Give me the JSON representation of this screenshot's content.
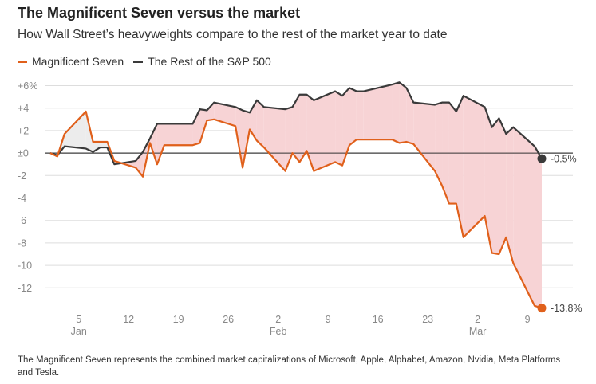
{
  "title": "The Magnificent Seven versus the market",
  "subtitle": "How Wall Street’s heavyweights compare to the rest of the market year to date",
  "footnote": "The Magnificent Seven represents the combined market capitalizations of Microsoft, Apple, Alphabet, Amazon, Nvidia, Meta Platforms and Tesla.",
  "colors": {
    "mag7": "#e0601b",
    "rest": "#3a3a3a",
    "fill_under": "#f7d3d5",
    "fill_over": "#ececec",
    "grid": "#dddddd",
    "zero": "#333333"
  },
  "chart_data": {
    "type": "line",
    "title": "The Magnificent Seven versus the market",
    "xlabel": "",
    "ylabel": "",
    "ylim": [
      -14,
      6
    ],
    "yticks": [
      "+6%",
      "+4",
      "+2",
      "±0",
      "-2",
      "-4",
      "-6",
      "-8",
      "-10",
      "-12"
    ],
    "xticks": [
      "5",
      "12",
      "19",
      "26",
      "2",
      "9",
      "16",
      "23",
      "2",
      "9"
    ],
    "xticks_months": {
      "Jan": "5",
      "Feb": "2",
      "Mar": "2"
    },
    "x_range": [
      "2025-01-01",
      "2025-03-11"
    ],
    "x": [
      "2025-01-01",
      "2025-01-02",
      "2025-01-03",
      "2025-01-06",
      "2025-01-07",
      "2025-01-08",
      "2025-01-09",
      "2025-01-10",
      "2025-01-13",
      "2025-01-14",
      "2025-01-15",
      "2025-01-16",
      "2025-01-17",
      "2025-01-21",
      "2025-01-22",
      "2025-01-23",
      "2025-01-24",
      "2025-01-27",
      "2025-01-28",
      "2025-01-29",
      "2025-01-30",
      "2025-01-31",
      "2025-02-03",
      "2025-02-04",
      "2025-02-05",
      "2025-02-06",
      "2025-02-07",
      "2025-02-10",
      "2025-02-11",
      "2025-02-12",
      "2025-02-13",
      "2025-02-14",
      "2025-02-18",
      "2025-02-19",
      "2025-02-20",
      "2025-02-21",
      "2025-02-24",
      "2025-02-25",
      "2025-02-26",
      "2025-02-27",
      "2025-02-28",
      "2025-03-03",
      "2025-03-04",
      "2025-03-05",
      "2025-03-06",
      "2025-03-07",
      "2025-03-10",
      "2025-03-11"
    ],
    "series": [
      {
        "name": "Magnificent Seven",
        "end_label": "-13.8%",
        "values": [
          0.0,
          -0.3,
          1.7,
          3.7,
          1.0,
          1.0,
          1.0,
          -0.7,
          -1.3,
          -2.1,
          0.9,
          -1.0,
          0.7,
          0.7,
          0.9,
          2.9,
          3.0,
          2.4,
          -1.3,
          2.1,
          1.1,
          0.5,
          -1.6,
          0.0,
          -0.8,
          0.2,
          -1.6,
          -0.8,
          -1.1,
          0.7,
          1.2,
          1.2,
          1.2,
          0.9,
          1.0,
          0.8,
          -1.6,
          -2.9,
          -4.5,
          -4.5,
          -7.5,
          -5.6,
          -8.9,
          -9.0,
          -7.5,
          -9.8,
          -13.6,
          -13.8
        ]
      },
      {
        "name": "The Rest of the S&P 500",
        "end_label": "-0.5%",
        "values": [
          0.0,
          -0.2,
          0.6,
          0.4,
          0.1,
          0.5,
          0.5,
          -1.0,
          -0.7,
          0.1,
          1.3,
          2.6,
          2.6,
          2.6,
          3.9,
          3.8,
          4.5,
          4.1,
          3.8,
          3.6,
          4.7,
          4.1,
          3.9,
          4.1,
          5.2,
          5.2,
          4.7,
          5.5,
          5.1,
          5.8,
          5.5,
          5.5,
          6.1,
          6.3,
          5.8,
          4.5,
          4.3,
          4.5,
          4.5,
          3.7,
          5.1,
          4.1,
          2.3,
          3.1,
          1.7,
          2.3,
          0.6,
          -0.5
        ]
      }
    ]
  }
}
